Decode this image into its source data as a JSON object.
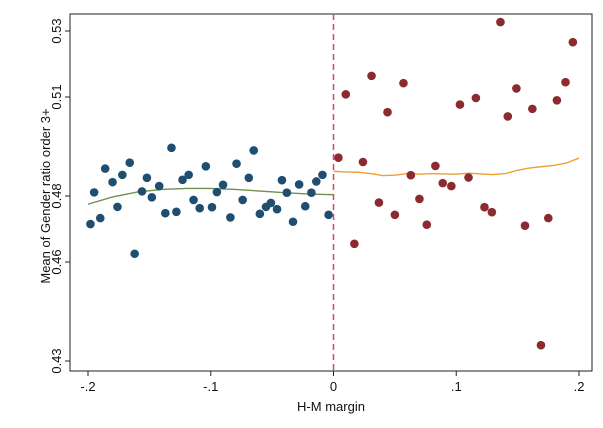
{
  "chart_data": {
    "type": "scatter",
    "xlabel": "H-M margin",
    "ylabel": "Mean of Gender ratio order 3+",
    "xlim": [
      -0.2,
      0.2
    ],
    "ylim": [
      0.43,
      0.53
    ],
    "xticks": [
      {
        "value": -0.2,
        "label": "-.2"
      },
      {
        "value": -0.1,
        "label": "-.1"
      },
      {
        "value": 0,
        "label": "0"
      },
      {
        "value": 0.1,
        "label": ".1"
      },
      {
        "value": 0.2,
        "label": ".2"
      }
    ],
    "yticks": [
      {
        "value": 0.43,
        "label": "0.43"
      },
      {
        "value": 0.46,
        "label": "0.46"
      },
      {
        "value": 0.48,
        "label": "0.48"
      },
      {
        "value": 0.51,
        "label": "0.51"
      },
      {
        "value": 0.53,
        "label": "0.53"
      }
    ],
    "grid": false,
    "legend": "none",
    "cutoff": {
      "x": 0,
      "color": "#d1466b",
      "style": "dashed"
    },
    "series": [
      {
        "side": "left",
        "kind": "points",
        "color": "#1f4e70",
        "points": [
          [
            -0.198,
            0.4715
          ],
          [
            -0.195,
            0.4811
          ],
          [
            -0.19,
            0.4733
          ],
          [
            -0.186,
            0.4883
          ],
          [
            -0.18,
            0.4842
          ],
          [
            -0.176,
            0.4767
          ],
          [
            -0.172,
            0.4864
          ],
          [
            -0.166,
            0.4901
          ],
          [
            -0.162,
            0.4625
          ],
          [
            -0.156,
            0.4814
          ],
          [
            -0.152,
            0.4855
          ],
          [
            -0.148,
            0.4796
          ],
          [
            -0.142,
            0.483
          ],
          [
            -0.137,
            0.4748
          ],
          [
            -0.132,
            0.4946
          ],
          [
            -0.128,
            0.4752
          ],
          [
            -0.123,
            0.4849
          ],
          [
            -0.118,
            0.4864
          ],
          [
            -0.114,
            0.4788
          ],
          [
            -0.109,
            0.4763
          ],
          [
            -0.104,
            0.489
          ],
          [
            -0.099,
            0.4766
          ],
          [
            -0.095,
            0.4812
          ],
          [
            -0.09,
            0.4834
          ],
          [
            -0.084,
            0.4735
          ],
          [
            -0.079,
            0.4898
          ],
          [
            -0.074,
            0.4788
          ],
          [
            -0.069,
            0.4855
          ],
          [
            -0.065,
            0.4938
          ],
          [
            -0.06,
            0.4746
          ],
          [
            -0.055,
            0.4767
          ],
          [
            -0.051,
            0.4779
          ],
          [
            -0.046,
            0.476
          ],
          [
            -0.042,
            0.4848
          ],
          [
            -0.038,
            0.481
          ],
          [
            -0.033,
            0.4722
          ],
          [
            -0.028,
            0.4835
          ],
          [
            -0.023,
            0.4769
          ],
          [
            -0.018,
            0.481
          ],
          [
            -0.014,
            0.4844
          ],
          [
            -0.009,
            0.4864
          ],
          [
            -0.004,
            0.4743
          ]
        ]
      },
      {
        "side": "right",
        "kind": "points",
        "color": "#8c2a2f",
        "points": [
          [
            0.004,
            0.4916
          ],
          [
            0.01,
            0.5108
          ],
          [
            0.017,
            0.4655
          ],
          [
            0.024,
            0.4903
          ],
          [
            0.031,
            0.5164
          ],
          [
            0.037,
            0.478
          ],
          [
            0.044,
            0.5054
          ],
          [
            0.05,
            0.4743
          ],
          [
            0.057,
            0.5142
          ],
          [
            0.063,
            0.4863
          ],
          [
            0.07,
            0.4791
          ],
          [
            0.076,
            0.4713
          ],
          [
            0.083,
            0.4891
          ],
          [
            0.089,
            0.4839
          ],
          [
            0.096,
            0.483
          ],
          [
            0.103,
            0.5077
          ],
          [
            0.11,
            0.4856
          ],
          [
            0.116,
            0.5097
          ],
          [
            0.123,
            0.4766
          ],
          [
            0.129,
            0.4751
          ],
          [
            0.136,
            0.5327
          ],
          [
            0.142,
            0.5041
          ],
          [
            0.149,
            0.5126
          ],
          [
            0.156,
            0.471
          ],
          [
            0.162,
            0.5064
          ],
          [
            0.169,
            0.4348
          ],
          [
            0.175,
            0.4733
          ],
          [
            0.182,
            0.509
          ],
          [
            0.189,
            0.5145
          ],
          [
            0.195,
            0.5266
          ]
        ]
      },
      {
        "side": "left",
        "kind": "fit",
        "color": "#6f9050",
        "points": [
          [
            -0.2,
            0.4775
          ],
          [
            -0.18,
            0.4797
          ],
          [
            -0.16,
            0.4812
          ],
          [
            -0.14,
            0.482
          ],
          [
            -0.12,
            0.4823
          ],
          [
            -0.1,
            0.4823
          ],
          [
            -0.08,
            0.482
          ],
          [
            -0.06,
            0.4815
          ],
          [
            -0.04,
            0.481
          ],
          [
            -0.02,
            0.4806
          ],
          [
            0,
            0.4804
          ]
        ]
      },
      {
        "side": "right",
        "kind": "fit",
        "color": "#f0a030",
        "points": [
          [
            0,
            0.4875
          ],
          [
            0.01,
            0.4873
          ],
          [
            0.02,
            0.4872
          ],
          [
            0.03,
            0.4868
          ],
          [
            0.04,
            0.4862
          ],
          [
            0.05,
            0.4863
          ],
          [
            0.06,
            0.4868
          ],
          [
            0.07,
            0.4866
          ],
          [
            0.08,
            0.4868
          ],
          [
            0.09,
            0.4867
          ],
          [
            0.1,
            0.4866
          ],
          [
            0.11,
            0.4869
          ],
          [
            0.12,
            0.4867
          ],
          [
            0.13,
            0.4865
          ],
          [
            0.14,
            0.4868
          ],
          [
            0.15,
            0.4878
          ],
          [
            0.16,
            0.4885
          ],
          [
            0.17,
            0.4889
          ],
          [
            0.18,
            0.4893
          ],
          [
            0.19,
            0.49
          ],
          [
            0.2,
            0.4915
          ]
        ]
      }
    ]
  }
}
